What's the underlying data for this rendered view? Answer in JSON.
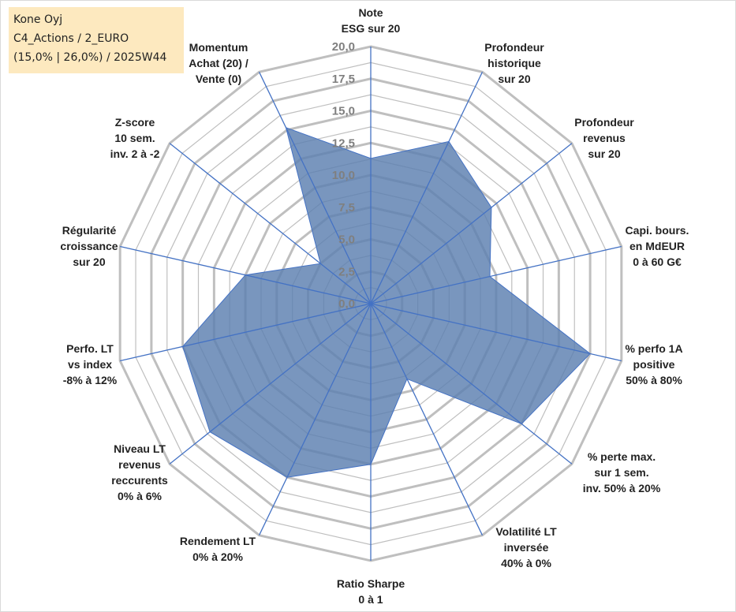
{
  "title_box": {
    "line1": "Kone Oyj",
    "line2": "C4_Actions / 2_EURO",
    "line3": "(15,0% | 26,0%) / 2025W44"
  },
  "colors": {
    "grid": "#bfbfbf",
    "axis": "#4472c4",
    "fill": "#5b7fb0",
    "tick_text": "#7f7f7f",
    "title_bg": "#fde9bf"
  },
  "chart_data": {
    "type": "radar",
    "ylim": [
      0,
      20
    ],
    "ticks": [
      "0,0",
      "2,5",
      "5,0",
      "7,5",
      "10,0",
      "12,5",
      "15,0",
      "17,5",
      "20,0"
    ],
    "axes": [
      [
        "Note",
        "ESG sur 20"
      ],
      [
        "Profondeur",
        "historique",
        "sur 20"
      ],
      [
        "Profondeur",
        "revenus",
        "sur 20"
      ],
      [
        "Capi. bours.",
        "en MdEUR",
        "0 à 60 G€"
      ],
      [
        "% perfo 1A",
        "positive",
        "50% à 80%"
      ],
      [
        "% perte max.",
        "sur 1 sem.",
        "inv. 50% à 20%"
      ],
      [
        "Volatilité LT",
        "inversée",
        "40% à 0%"
      ],
      [
        "Ratio Sharpe",
        "0 à 1"
      ],
      [
        "Rendement LT",
        "0% à 20%"
      ],
      [
        "Niveau LT",
        "revenus",
        "reccurents",
        "0% à 6%"
      ],
      [
        "Perfo. LT",
        "vs index",
        "-8% à 12%"
      ],
      [
        "Régularité",
        "croissance",
        "sur 20"
      ],
      [
        "Z-score",
        "10 sem.",
        "inv. 2 à -2"
      ],
      [
        "Momentum",
        "Achat (20) /",
        "Vente (0)"
      ]
    ],
    "series": [
      {
        "values": [
          11.3,
          14.0,
          12.0,
          9.5,
          17.5,
          15.0,
          6.5,
          12.5,
          15.0,
          16.0,
          15.0,
          10.0,
          5.0,
          15.2
        ]
      }
    ],
    "grid": true,
    "legend": "none"
  }
}
